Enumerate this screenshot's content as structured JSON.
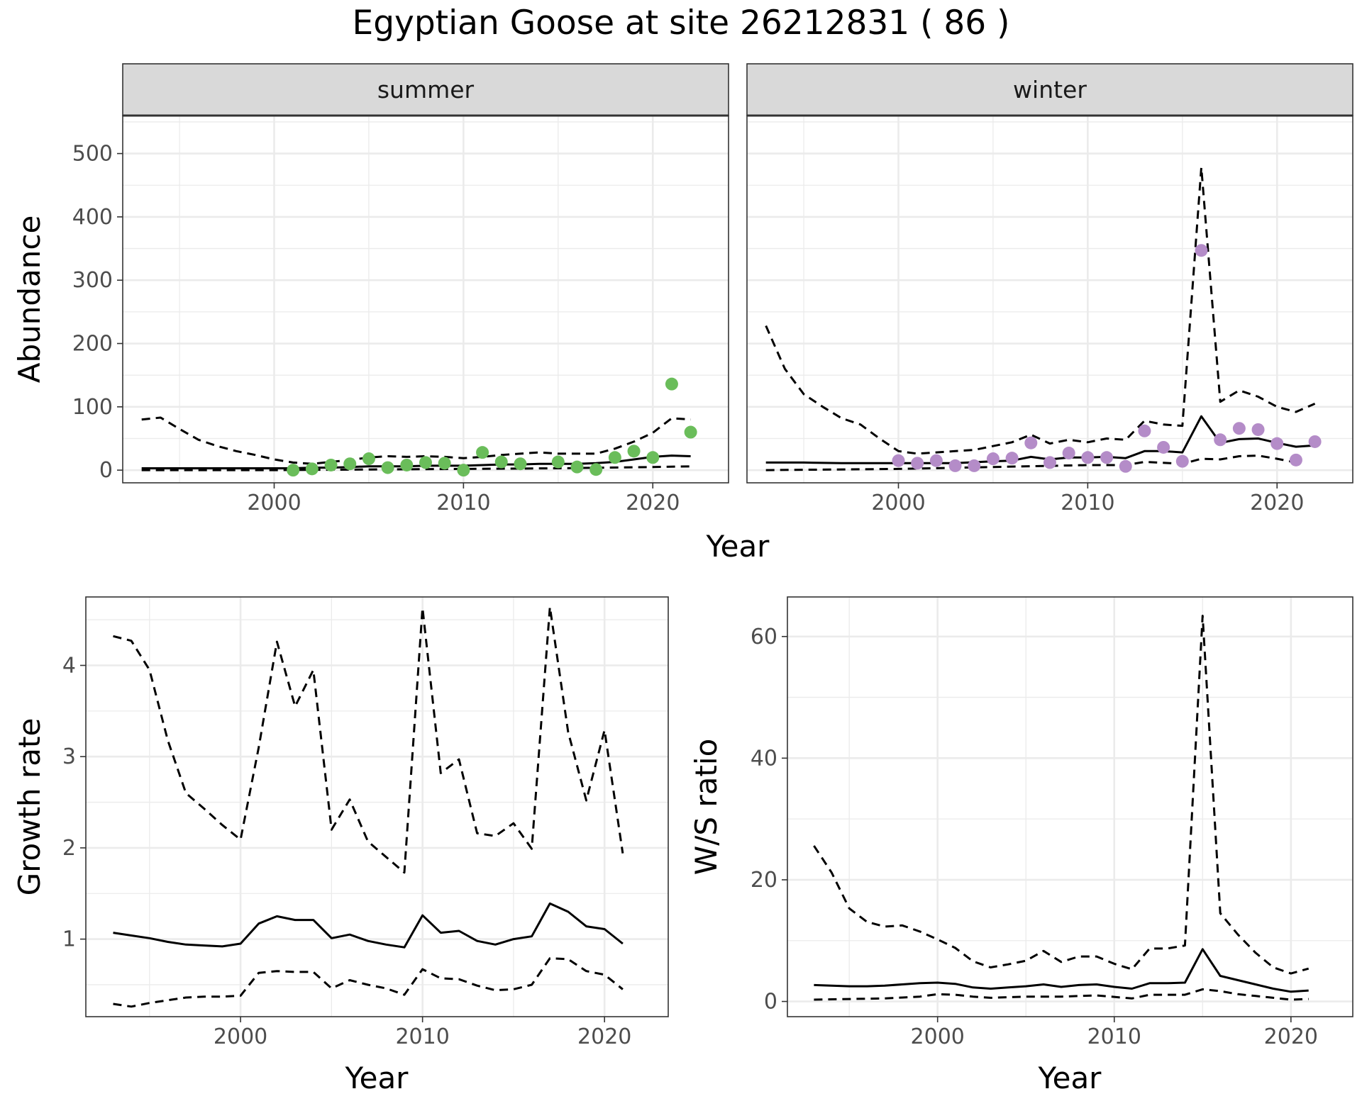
{
  "title": "Egyptian Goose at site 26212831 ( 86 )",
  "colors": {
    "summer_points": "#6abd5a",
    "winter_points": "#b48cc8"
  },
  "chart_data": [
    {
      "type": "line",
      "panel": "Abundance by season",
      "xlabel": "Year",
      "ylabel": "Abundance",
      "xlim": [
        1992,
        2024
      ],
      "ylim": [
        -20,
        560
      ],
      "x_ticks": [
        2000,
        2010,
        2020
      ],
      "y_ticks": [
        0,
        100,
        200,
        300,
        400,
        500
      ],
      "grid": true,
      "facets": [
        {
          "strip": "summer",
          "estimate": {
            "x": [
              1993,
              1994,
              1995,
              1996,
              1997,
              1998,
              1999,
              2000,
              2001,
              2002,
              2003,
              2004,
              2005,
              2006,
              2007,
              2008,
              2009,
              2010,
              2011,
              2012,
              2013,
              2014,
              2015,
              2016,
              2017,
              2018,
              2019,
              2020,
              2021,
              2022
            ],
            "y": [
              3,
              3,
              3,
              3,
              3,
              3,
              3,
              3,
              3,
              4,
              4,
              5,
              6,
              6,
              6,
              7,
              7,
              7,
              8,
              9,
              9,
              10,
              10,
              10,
              11,
              13,
              17,
              21,
              23,
              22
            ]
          },
          "upper": {
            "x": [
              1993,
              1994,
              1995,
              1996,
              1997,
              1998,
              1999,
              2000,
              2001,
              2002,
              2003,
              2004,
              2005,
              2006,
              2007,
              2008,
              2009,
              2010,
              2011,
              2012,
              2013,
              2014,
              2015,
              2016,
              2017,
              2018,
              2019,
              2020,
              2021,
              2022
            ],
            "y": [
              80,
              83,
              65,
              48,
              38,
              30,
              24,
              17,
              12,
              10,
              13,
              16,
              20,
              22,
              21,
              22,
              21,
              19,
              21,
              24,
              26,
              28,
              26,
              26,
              26,
              34,
              45,
              59,
              82,
              80
            ]
          },
          "lower": {
            "x": [
              1993,
              2000,
              2005,
              2010,
              2015,
              2020,
              2022
            ],
            "y": [
              0,
              0,
              1,
              2,
              3,
              5,
              6
            ]
          },
          "observed": {
            "x": [
              2001,
              2002,
              2003,
              2004,
              2005,
              2006,
              2007,
              2008,
              2009,
              2010,
              2011,
              2012,
              2013,
              2015,
              2016,
              2017,
              2018,
              2019,
              2020,
              2021,
              2022
            ],
            "y": [
              0,
              2,
              8,
              10,
              18,
              4,
              8,
              12,
              11,
              0,
              28,
              13,
              10,
              13,
              5,
              1,
              20,
              30,
              20,
              136,
              60
            ]
          }
        },
        {
          "strip": "winter",
          "estimate": {
            "x": [
              1993,
              1995,
              1997,
              1999,
              2001,
              2003,
              2005,
              2006,
              2007,
              2008,
              2009,
              2010,
              2011,
              2012,
              2013,
              2014,
              2015,
              2016,
              2017,
              2018,
              2019,
              2020,
              2021,
              2022
            ],
            "y": [
              12,
              12,
              11,
              11,
              11,
              11,
              14,
              15,
              21,
              17,
              20,
              20,
              21,
              19,
              30,
              30,
              28,
              85,
              43,
              49,
              50,
              43,
              37,
              39
            ]
          },
          "upper": {
            "x": [
              1993,
              1994,
              1995,
              1996,
              1997,
              1998,
              1999,
              2000,
              2001,
              2002,
              2003,
              2004,
              2005,
              2006,
              2007,
              2008,
              2009,
              2010,
              2011,
              2012,
              2013,
              2014,
              2015,
              2016,
              2017,
              2018,
              2019,
              2020,
              2021,
              2022
            ],
            "y": [
              228,
              160,
              120,
              100,
              82,
              72,
              50,
              30,
              26,
              28,
              30,
              32,
              38,
              44,
              56,
              42,
              48,
              44,
              50,
              48,
              78,
              72,
              70,
              478,
              108,
              126,
              116,
              100,
              92,
              105
            ]
          },
          "lower": {
            "x": [
              1993,
              2000,
              2005,
              2010,
              2012,
              2013,
              2015,
              2016,
              2017,
              2018,
              2019,
              2020,
              2021
            ],
            "y": [
              0,
              2,
              5,
              8,
              8,
              13,
              10,
              18,
              17,
              22,
              23,
              18,
              12
            ]
          },
          "observed": {
            "x": [
              2000,
              2001,
              2002,
              2003,
              2004,
              2005,
              2006,
              2007,
              2008,
              2009,
              2010,
              2011,
              2012,
              2013,
              2014,
              2015,
              2016,
              2017,
              2018,
              2019,
              2020,
              2021,
              2022
            ],
            "y": [
              15,
              11,
              15,
              7,
              7,
              18,
              19,
              43,
              12,
              27,
              20,
              20,
              6,
              62,
              36,
              14,
              347,
              48,
              66,
              64,
              42,
              16,
              45
            ]
          }
        }
      ]
    },
    {
      "type": "line",
      "panel": "Growth rate",
      "xlabel": "Year",
      "ylabel": "Growth rate",
      "xlim": [
        1991.5,
        2023.5
      ],
      "ylim": [
        0.15,
        4.75
      ],
      "x_ticks": [
        2000,
        2010,
        2020
      ],
      "y_ticks": [
        1,
        2,
        3,
        4
      ],
      "grid": true,
      "estimate": {
        "x": [
          1993,
          1994,
          1995,
          1996,
          1997,
          1998,
          1999,
          2000,
          2001,
          2002,
          2003,
          2004,
          2005,
          2006,
          2007,
          2008,
          2009,
          2010,
          2011,
          2012,
          2013,
          2014,
          2015,
          2016,
          2017,
          2018,
          2019,
          2020,
          2021
        ],
        "y": [
          1.07,
          1.04,
          1.01,
          0.97,
          0.94,
          0.93,
          0.92,
          0.95,
          1.17,
          1.25,
          1.21,
          1.21,
          1.01,
          1.05,
          0.98,
          0.94,
          0.91,
          1.26,
          1.07,
          1.09,
          0.98,
          0.94,
          1.0,
          1.03,
          1.39,
          1.3,
          1.14,
          1.11,
          0.95
        ]
      },
      "upper": {
        "x": [
          1993,
          1994,
          1995,
          1996,
          1997,
          1998,
          1999,
          2000,
          2001,
          2002,
          2003,
          2004,
          2005,
          2006,
          2007,
          2008,
          2009,
          2010,
          2011,
          2012,
          2013,
          2014,
          2015,
          2016,
          2017,
          2018,
          2019,
          2020,
          2021
        ],
        "y": [
          4.32,
          4.27,
          3.95,
          3.18,
          2.6,
          2.43,
          2.25,
          2.09,
          3.1,
          4.26,
          3.55,
          3.95,
          2.2,
          2.53,
          2.07,
          1.9,
          1.73,
          4.63,
          2.82,
          2.97,
          2.16,
          2.13,
          2.27,
          1.99,
          4.64,
          3.27,
          2.52,
          3.29,
          1.94
        ]
      },
      "lower": {
        "x": [
          1993,
          1994,
          1995,
          1996,
          1997,
          1998,
          1999,
          2000,
          2001,
          2002,
          2003,
          2004,
          2005,
          2006,
          2007,
          2008,
          2009,
          2010,
          2011,
          2012,
          2013,
          2014,
          2015,
          2016,
          2017,
          2018,
          2019,
          2020,
          2021
        ],
        "y": [
          0.29,
          0.26,
          0.3,
          0.33,
          0.36,
          0.37,
          0.37,
          0.38,
          0.63,
          0.65,
          0.64,
          0.64,
          0.46,
          0.55,
          0.5,
          0.46,
          0.39,
          0.67,
          0.57,
          0.56,
          0.49,
          0.44,
          0.45,
          0.5,
          0.79,
          0.78,
          0.65,
          0.61,
          0.45
        ]
      }
    },
    {
      "type": "line",
      "panel": "W/S ratio",
      "xlabel": "Year",
      "ylabel": "W/S ratio",
      "xlim": [
        1991.5,
        2023.5
      ],
      "ylim": [
        -2.5,
        66.5
      ],
      "x_ticks": [
        2000,
        2010,
        2020
      ],
      "y_ticks": [
        0,
        20,
        40,
        60
      ],
      "grid": true,
      "estimate": {
        "x": [
          1993,
          1994,
          1995,
          1996,
          1997,
          1998,
          1999,
          2000,
          2001,
          2002,
          2003,
          2004,
          2005,
          2006,
          2007,
          2008,
          2009,
          2010,
          2011,
          2012,
          2013,
          2014,
          2015,
          2016,
          2017,
          2018,
          2019,
          2020,
          2021
        ],
        "y": [
          2.7,
          2.6,
          2.5,
          2.5,
          2.6,
          2.8,
          3.0,
          3.1,
          2.9,
          2.3,
          2.1,
          2.3,
          2.5,
          2.8,
          2.4,
          2.7,
          2.8,
          2.4,
          2.1,
          3.0,
          3.0,
          3.1,
          8.6,
          4.2,
          3.5,
          2.8,
          2.1,
          1.6,
          1.8
        ]
      },
      "upper": {
        "x": [
          1993,
          1994,
          1995,
          1996,
          1997,
          1998,
          1999,
          2000,
          2001,
          2002,
          2003,
          2004,
          2005,
          2006,
          2007,
          2008,
          2009,
          2010,
          2011,
          2012,
          2013,
          2014,
          2015,
          2016,
          2017,
          2018,
          2019,
          2020,
          2021
        ],
        "y": [
          25.6,
          21.2,
          15.3,
          13.1,
          12.3,
          12.5,
          11.5,
          10.2,
          8.8,
          6.6,
          5.6,
          6.1,
          6.7,
          8.3,
          6.5,
          7.4,
          7.4,
          6.2,
          5.3,
          8.7,
          8.7,
          9.2,
          63.4,
          14.5,
          11.0,
          8.0,
          5.6,
          4.6,
          5.4
        ]
      },
      "lower": {
        "x": [
          1993,
          1995,
          1997,
          1999,
          2000,
          2001,
          2002,
          2003,
          2005,
          2007,
          2009,
          2011,
          2012,
          2014,
          2015,
          2016,
          2017,
          2018,
          2019,
          2020,
          2021
        ],
        "y": [
          0.3,
          0.4,
          0.5,
          0.8,
          1.2,
          1.1,
          0.8,
          0.6,
          0.8,
          0.8,
          1.0,
          0.5,
          1.1,
          1.1,
          2.0,
          1.7,
          1.2,
          0.9,
          0.6,
          0.3,
          0.4
        ]
      }
    }
  ]
}
